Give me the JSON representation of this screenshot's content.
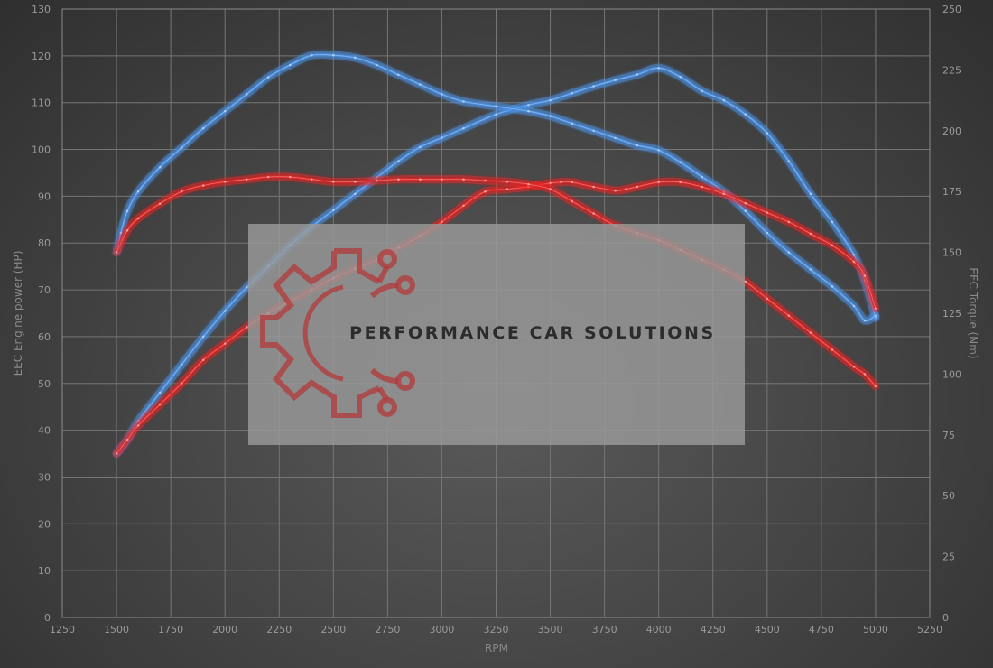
{
  "chart_data": {
    "type": "line",
    "title": "",
    "xlabel": "RPM",
    "ylabel_left": "EEC Engine power (HP)",
    "ylabel_right": "EEC Torque (Nm)",
    "xlim": [
      1250,
      5250
    ],
    "x_ticks": [
      1250,
      1500,
      1750,
      2000,
      2250,
      2500,
      2750,
      3000,
      3250,
      3500,
      3750,
      4000,
      4250,
      4500,
      4750,
      5000,
      5250
    ],
    "ylim_left": [
      0,
      130
    ],
    "y_left_ticks": [
      0,
      10,
      20,
      30,
      40,
      50,
      60,
      70,
      80,
      90,
      100,
      110,
      120,
      130
    ],
    "ylim_right": [
      0,
      250
    ],
    "y_right_ticks": [
      0,
      25,
      50,
      75,
      100,
      125,
      150,
      175,
      200,
      225,
      250
    ],
    "grid": true,
    "legend": "none",
    "colors": {
      "tuned": "#4a8fe0",
      "stock": "#e02828",
      "tuned_glow": "#5aa0ff",
      "stock_glow": "#ff3030"
    },
    "series": [
      {
        "kind": "power",
        "axis": "left",
        "color": "tuned",
        "x": [
          1500,
          1550,
          1600,
          1700,
          1800,
          1900,
          2000,
          2100,
          2200,
          2300,
          2400,
          2500,
          2600,
          2700,
          2800,
          2900,
          3000,
          3100,
          3250,
          3400,
          3500,
          3600,
          3700,
          3800,
          3900,
          4000,
          4100,
          4200,
          4300,
          4400,
          4500,
          4600,
          4700,
          4800,
          4900,
          4950,
          5000
        ],
        "values": [
          35,
          38,
          42,
          48,
          54,
          60,
          65.5,
          70.5,
          75,
          79.5,
          83.5,
          87,
          90.5,
          94,
          97.5,
          100.5,
          102.5,
          104.5,
          107.5,
          109.5,
          110.5,
          112,
          113.5,
          114.8,
          116,
          117.4,
          115.5,
          112.5,
          110.5,
          107.5,
          103.5,
          97.5,
          90.5,
          84.5,
          77.5,
          72,
          64
        ]
      },
      {
        "kind": "torque",
        "axis": "right",
        "color": "tuned",
        "x": [
          1500,
          1520,
          1550,
          1600,
          1700,
          1800,
          1900,
          2000,
          2100,
          2200,
          2300,
          2400,
          2500,
          2600,
          2700,
          2800,
          2900,
          3000,
          3100,
          3250,
          3400,
          3500,
          3600,
          3700,
          3800,
          3900,
          4000,
          4100,
          4200,
          4300,
          4400,
          4500,
          4600,
          4700,
          4800,
          4900,
          4950,
          5000
        ],
        "values": [
          150,
          158,
          167,
          175,
          185,
          193,
          201,
          208,
          215,
          222,
          227,
          231,
          231,
          230,
          227,
          223,
          219,
          215,
          212,
          210,
          208,
          206,
          203,
          200,
          197,
          194,
          192,
          187,
          181,
          175,
          167,
          158,
          150,
          143,
          136,
          128,
          122,
          124
        ]
      },
      {
        "kind": "power",
        "axis": "left",
        "color": "stock",
        "x": [
          1500,
          1550,
          1600,
          1700,
          1800,
          1900,
          2000,
          2100,
          2200,
          2300,
          2400,
          2500,
          2600,
          2700,
          2800,
          2900,
          3000,
          3100,
          3200,
          3300,
          3400,
          3500,
          3550,
          3600,
          3700,
          3800,
          3850,
          3900,
          4000,
          4100,
          4200,
          4300,
          4400,
          4500,
          4600,
          4700,
          4800,
          4900,
          4950,
          5000
        ],
        "values": [
          35,
          38,
          41,
          45.5,
          50,
          55,
          58.5,
          62,
          65,
          67.5,
          70,
          72.5,
          74.5,
          76.5,
          79,
          81.5,
          84.5,
          88,
          91,
          91.5,
          92,
          92.8,
          93,
          93,
          92,
          91.2,
          91.5,
          92,
          93,
          93,
          92,
          90.5,
          88.5,
          86.5,
          84.5,
          82,
          79.5,
          76,
          73,
          66
        ]
      },
      {
        "kind": "torque",
        "axis": "right",
        "color": "stock",
        "x": [
          1500,
          1550,
          1600,
          1700,
          1800,
          1900,
          2000,
          2100,
          2200,
          2300,
          2400,
          2500,
          2600,
          2700,
          2800,
          2900,
          3000,
          3100,
          3200,
          3300,
          3400,
          3500,
          3600,
          3700,
          3800,
          3900,
          4000,
          4100,
          4200,
          4300,
          4400,
          4500,
          4600,
          4700,
          4800,
          4900,
          4950,
          5000
        ],
        "values": [
          150,
          159,
          164,
          170,
          175,
          177.5,
          179,
          180,
          181,
          181,
          180,
          179,
          179,
          179.5,
          180,
          180,
          180,
          180,
          179.5,
          179,
          178,
          176,
          171,
          166,
          161,
          158,
          155,
          151,
          147,
          143,
          138,
          131,
          124,
          117,
          110,
          103,
          100,
          95
        ]
      }
    ],
    "watermark": "PERFORMANCE CAR SOLUTIONS"
  }
}
